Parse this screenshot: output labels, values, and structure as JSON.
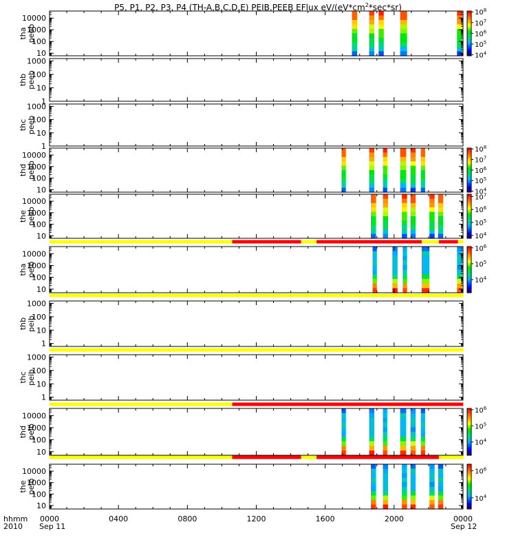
{
  "title": {
    "prefix": "P5, P1, P2, P3, P4 (TH-A,B,C,D,E) PEIB,PEEB EFlux eV/(eV*cm",
    "sup": "2",
    "suffix": "*sec*sr)"
  },
  "footer": {
    "hhmm": "hhmm",
    "year": "2010",
    "x_ticks": [
      "0000",
      "0400",
      "0800",
      "1200",
      "1600",
      "2000",
      "0000"
    ],
    "date_start": "Sep 11",
    "date_end": "Sep 12"
  },
  "colors": {
    "mode_yellow": "#ffff00",
    "mode_red": "#ff0000"
  },
  "chart_data": {
    "type": "heatmap",
    "x_range_hours": [
      0,
      24
    ],
    "y_scale": "log",
    "panels": [
      {
        "ylabel": [
          "tha",
          "peeb"
        ],
        "ylim": [
          6,
          40000
        ],
        "yticks": [
          10,
          100,
          1000,
          10000
        ],
        "cbar": {
          "exps": [
            4,
            5,
            6,
            7,
            8
          ],
          "range": [
            8000,
            120000000.0
          ]
        },
        "species": "e",
        "bars": [
          [
            17.55,
            17.85
          ],
          [
            18.55,
            18.85
          ],
          [
            19.1,
            19.4
          ],
          [
            20.35,
            20.75
          ],
          [
            23.65,
            23.95
          ]
        ]
      },
      {
        "ylabel": [
          "thb",
          "peeb"
        ],
        "ylim": [
          1,
          1500
        ],
        "yticks": [
          1,
          10,
          100,
          1000
        ],
        "cbar": null,
        "bars": []
      },
      {
        "ylabel": [
          "thc",
          "peeb"
        ],
        "ylim": [
          1,
          1500
        ],
        "yticks": [
          1,
          10,
          100,
          1000
        ],
        "cbar": null,
        "bars": []
      },
      {
        "ylabel": [
          "thd",
          "peeb"
        ],
        "ylim": [
          6,
          40000
        ],
        "yticks": [
          10,
          100,
          1000,
          10000
        ],
        "cbar": {
          "exps": [
            4,
            5,
            6,
            7,
            8
          ],
          "range": [
            8000,
            120000000.0
          ]
        },
        "species": "e",
        "bars": [
          [
            16.95,
            17.2
          ],
          [
            18.55,
            18.85
          ],
          [
            19.35,
            19.6
          ],
          [
            20.35,
            20.7
          ],
          [
            20.95,
            21.25
          ],
          [
            21.55,
            21.8
          ]
        ]
      },
      {
        "ylabel": [
          "the",
          "peeb"
        ],
        "ylim": [
          6,
          40000
        ],
        "yticks": [
          10,
          100,
          1000,
          10000
        ],
        "cbar": {
          "exps": [
            4,
            5,
            6,
            7
          ],
          "range": [
            6000,
            15000000.0
          ]
        },
        "species": "e",
        "bars": [
          [
            18.65,
            18.95
          ],
          [
            19.35,
            19.65
          ],
          [
            20.45,
            20.75
          ],
          [
            20.95,
            21.25
          ],
          [
            22.05,
            22.35
          ],
          [
            22.55,
            22.85
          ]
        ]
      },
      {
        "ylabel": [
          "tha",
          "peib"
        ],
        "ylim": [
          5,
          40000
        ],
        "yticks": [
          10,
          100,
          1000,
          10000
        ],
        "cbar": {
          "exps": [
            4,
            5,
            6
          ],
          "range": [
            1500,
            1200000.0
          ]
        },
        "species": "i",
        "mode_bar": [
          [
            0,
            10.6,
            "yellow"
          ],
          [
            10.6,
            14.6,
            "red"
          ],
          [
            14.6,
            15.5,
            "yellow"
          ],
          [
            15.5,
            21.6,
            "red"
          ],
          [
            21.6,
            22.6,
            "yellow"
          ],
          [
            22.6,
            23.7,
            "red"
          ],
          [
            23.7,
            24,
            "yellow"
          ]
        ],
        "bars": [
          [
            18.75,
            19.0
          ],
          [
            19.9,
            20.2
          ],
          [
            20.5,
            20.75
          ],
          [
            21.6,
            22.05
          ],
          [
            23.65,
            23.95
          ]
        ]
      },
      {
        "ylabel": [
          "thb",
          "peib"
        ],
        "ylim": [
          0.6,
          1500
        ],
        "yticks": [
          1,
          10,
          100,
          1000
        ],
        "cbar": null,
        "mode_bar": [
          [
            0,
            24,
            "yellow"
          ]
        ],
        "bars": []
      },
      {
        "ylabel": [
          "thc",
          "peib"
        ],
        "ylim": [
          0.6,
          1500
        ],
        "yticks": [
          1,
          10,
          100,
          1000
        ],
        "cbar": null,
        "mode_bar": [
          [
            0,
            24,
            "yellow"
          ]
        ],
        "bars": []
      },
      {
        "ylabel": [
          "thd",
          "peib"
        ],
        "ylim": [
          5,
          40000
        ],
        "yticks": [
          10,
          100,
          1000,
          10000
        ],
        "cbar": {
          "exps": [
            4,
            5,
            6
          ],
          "range": [
            1500,
            1200000.0
          ]
        },
        "species": "i",
        "mode_bar": [
          [
            0,
            10.6,
            "yellow"
          ],
          [
            10.6,
            24,
            "red"
          ]
        ],
        "bars": [
          [
            16.95,
            17.2
          ],
          [
            18.55,
            18.85
          ],
          [
            19.35,
            19.6
          ],
          [
            20.35,
            20.7
          ],
          [
            20.95,
            21.25
          ],
          [
            21.55,
            21.8
          ]
        ]
      },
      {
        "ylabel": [
          "the",
          "peib"
        ],
        "ylim": [
          5,
          40000
        ],
        "yticks": [
          10,
          100,
          1000,
          10000
        ],
        "cbar": {
          "exps": [
            4,
            6
          ],
          "range": [
            1500,
            3000000.0
          ]
        },
        "species": "i",
        "mode_bar": [
          [
            0,
            10.6,
            "yellow"
          ],
          [
            10.6,
            14.6,
            "red"
          ],
          [
            14.6,
            15.5,
            "yellow"
          ],
          [
            15.5,
            22.6,
            "red"
          ],
          [
            22.6,
            24,
            "yellow"
          ]
        ],
        "bars": [
          [
            18.65,
            18.95
          ],
          [
            19.35,
            19.65
          ],
          [
            20.45,
            20.75
          ],
          [
            20.95,
            21.25
          ],
          [
            22.05,
            22.35
          ],
          [
            22.55,
            22.85
          ]
        ]
      }
    ]
  }
}
